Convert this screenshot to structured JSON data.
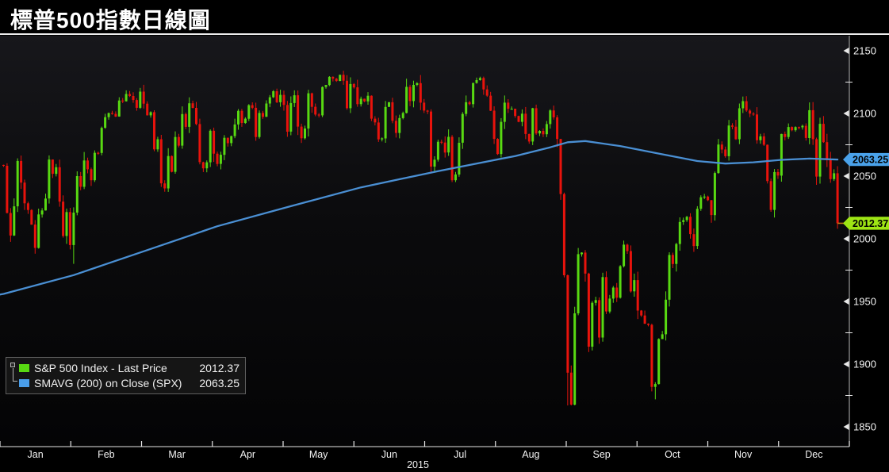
{
  "title": "標普500指數日線圖",
  "legend": {
    "items": [
      {
        "swatch_color": "#58d912",
        "label": "S&P 500 Index - Last Price",
        "value": "2012.37"
      },
      {
        "swatch_color": "#4a9eea",
        "label": "SMAVG (200) on Close (SPX)",
        "value": "2063.25"
      }
    ]
  },
  "chart_data": {
    "type": "candlestick",
    "title": "S&P 500 Index daily candlestick chart with 200-day simple moving average, year 2015",
    "x_labels": [
      "Jan",
      "Feb",
      "Mar",
      "Apr",
      "May",
      "Jun",
      "Jul",
      "Aug",
      "Sep",
      "Oct",
      "Nov",
      "Dec"
    ],
    "year_label": "2015",
    "y_axis": {
      "min": 1850,
      "max": 2150,
      "tick_step": 50,
      "major_ticks": [
        2150,
        2100,
        2050,
        2000,
        1950,
        1900,
        1850
      ],
      "minor_ticks": [
        2125,
        2075,
        2025,
        1975,
        1925,
        1875
      ]
    },
    "grid": "off",
    "legend_position": "bottom-left",
    "open_first": 2058.9,
    "closes": [
      2058.2,
      2020.6,
      2002.6,
      2025.9,
      2062.1,
      2044.8,
      2028.3,
      2023.0,
      2011.3,
      1992.7,
      2019.4,
      2022.6,
      2032.1,
      2063.2,
      2051.8,
      2057.1,
      2029.6,
      2002.2,
      2021.3,
      1995.0,
      2020.9,
      2050.0,
      2041.5,
      2062.5,
      2055.5,
      2046.7,
      2068.6,
      2068.5,
      2088.5,
      2097.0,
      2100.3,
      2099.7,
      2097.5,
      2110.3,
      2109.7,
      2115.5,
      2113.9,
      2110.7,
      2104.5,
      2117.4,
      2107.8,
      2098.5,
      2101.0,
      2071.3,
      2079.4,
      2044.2,
      2040.2,
      2066.0,
      2053.4,
      2081.2,
      2074.3,
      2099.5,
      2089.3,
      2108.1,
      2104.4,
      2091.5,
      2061.1,
      2056.2,
      2061.0,
      2086.2,
      2067.9,
      2059.7,
      2067.0,
      2080.6,
      2076.3,
      2081.9,
      2091.2,
      2102.1,
      2092.4,
      2095.8,
      2106.6,
      2104.5,
      2081.2,
      2100.4,
      2097.3,
      2107.9,
      2112.9,
      2117.7,
      2108.9,
      2114.8,
      2106.8,
      2085.5,
      2108.3,
      2114.5,
      2089.5,
      2080.2,
      2088.0,
      2116.1,
      2105.3,
      2099.1,
      2098.5,
      2121.1,
      2122.7,
      2129.2,
      2127.8,
      2125.9,
      2130.8,
      2126.1,
      2104.2,
      2123.5,
      2120.8,
      2107.4,
      2111.7,
      2109.6,
      2114.1,
      2095.8,
      2092.8,
      2079.3,
      2080.1,
      2105.2,
      2108.9,
      2094.1,
      2084.4,
      2096.3,
      2100.4,
      2121.2,
      2109.9,
      2122.8,
      2124.2,
      2108.6,
      2102.3,
      2101.5,
      2057.6,
      2063.1,
      2077.4,
      2076.8,
      2068.8,
      2081.3,
      2046.7,
      2051.3,
      2076.6,
      2099.6,
      2108.9,
      2107.4,
      2124.3,
      2126.6,
      2128.3,
      2119.2,
      2114.2,
      2102.2,
      2079.7,
      2067.6,
      2093.3,
      2108.6,
      2103.8,
      2103.8,
      2098.0,
      2093.3,
      2099.8,
      2083.6,
      2077.6,
      2104.2,
      2084.1,
      2086.1,
      2083.4,
      2091.5,
      2102.4,
      2096.9,
      2079.6,
      2035.7,
      1970.9,
      1893.2,
      1867.6,
      1940.5,
      1987.7,
      1989.0,
      1972.2,
      1913.9,
      1948.9,
      1951.1,
      1921.2,
      1969.4,
      1942.0,
      1952.3,
      1961.1,
      1953.0,
      1978.1,
      1995.3,
      1990.2,
      1958.0,
      1967.0,
      1942.7,
      1938.8,
      1932.2,
      1931.3,
      1881.8,
      1884.1,
      1920.0,
      1923.8,
      1951.4,
      1987.1,
      1979.9,
      1995.8,
      2013.4,
      2014.9,
      2017.5,
      2003.7,
      1994.2,
      2023.9,
      2033.1,
      2033.7,
      2030.8,
      2018.9,
      2052.5,
      2075.2,
      2071.2,
      2065.9,
      2090.4,
      2089.4,
      2079.4,
      2104.1,
      2109.8,
      2102.3,
      2099.9,
      2099.2,
      2078.6,
      2081.7,
      2075.0,
      2046.0,
      2023.0,
      2053.2,
      2050.4,
      2083.6,
      2081.2,
      2089.2,
      2086.6,
      2089.1,
      2088.9,
      2090.1,
      2080.4,
      2102.6,
      2079.5,
      2049.6,
      2091.7,
      2077.1,
      2063.6,
      2047.6,
      2052.3,
      2012.4
    ],
    "wick_overrides": {
      "9": {
        "low": 1988.1
      },
      "20": {
        "low": 1980.0
      },
      "161": {
        "low": 1867.0
      },
      "162": {
        "low": 1867.0
      },
      "186": {
        "low": 1871.9
      },
      "238": {
        "low": 2008.0
      }
    },
    "sma": {
      "name": "SMAVG (200) on Close (SPX)",
      "points": [
        [
          -1,
          1955.5
        ],
        [
          0,
          1956
        ],
        [
          20,
          1971
        ],
        [
          40,
          1990
        ],
        [
          61,
          2010
        ],
        [
          82,
          2026
        ],
        [
          102,
          2041
        ],
        [
          124,
          2054
        ],
        [
          146,
          2066
        ],
        [
          156,
          2073
        ],
        [
          161,
          2077
        ],
        [
          166,
          2078
        ],
        [
          176,
          2074
        ],
        [
          187,
          2068
        ],
        [
          198,
          2062
        ],
        [
          206,
          2060
        ],
        [
          214,
          2061
        ],
        [
          222,
          2063
        ],
        [
          230,
          2064
        ],
        [
          238,
          2063.25
        ]
      ]
    },
    "markers": [
      {
        "label": "2063.25",
        "value": 2063.25,
        "color": "#4aa2ea",
        "series": "sma"
      },
      {
        "label": "2012.37",
        "value": 2012.37,
        "color": "#9ee514",
        "series": "last-price"
      }
    ],
    "last_price": 2012.37,
    "sma_last": 2063.25,
    "colors": {
      "up": "#58d912",
      "down": "#e8130c",
      "sma": "#4a8fd3",
      "last_price_line": "#c47b16",
      "axis_line": "#9a9a9a",
      "tick_mark": "#e8e8e8",
      "tick_text": "#f2f2f2",
      "plot_bg_top": "#17171b",
      "plot_bg_bottom": "#040405"
    }
  }
}
